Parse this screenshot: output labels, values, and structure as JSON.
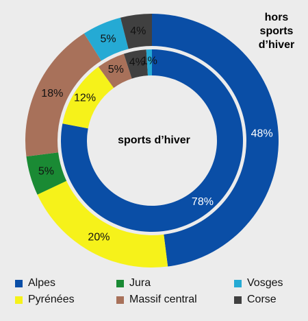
{
  "chart_data": {
    "type": "donut",
    "inner_ring": {
      "title": "sports d’hiver",
      "slices": [
        {
          "name": "Alpes",
          "value": 78,
          "label": "78%"
        },
        {
          "name": "Pyrénées",
          "value": 12,
          "label": "12%"
        },
        {
          "name": "Massif central",
          "value": 5,
          "label": "5%"
        },
        {
          "name": "Corse",
          "value": 4,
          "label": "4%"
        },
        {
          "name": "Vosges",
          "value": 1,
          "label": "1%"
        }
      ]
    },
    "outer_ring": {
      "title": "hors sports d’hiver",
      "slices": [
        {
          "name": "Alpes",
          "value": 48,
          "label": "48%"
        },
        {
          "name": "Pyrénées",
          "value": 20,
          "label": "20%"
        },
        {
          "name": "Jura",
          "value": 5,
          "label": "5%"
        },
        {
          "name": "Massif central",
          "value": 18,
          "label": "18%"
        },
        {
          "name": "Vosges",
          "value": 5,
          "label": "5%"
        },
        {
          "name": "Corse",
          "value": 4,
          "label": "4%"
        }
      ]
    },
    "colors": {
      "Alpes": "#0a4ea6",
      "Pyrénées": "#f6f21a",
      "Jura": "#1a8a34",
      "Massif central": "#a8715a",
      "Vosges": "#25aad4",
      "Corse": "#404040"
    },
    "legend": [
      "Alpes",
      "Jura",
      "Vosges",
      "Pyrénées",
      "Massif central",
      "Corse"
    ]
  }
}
